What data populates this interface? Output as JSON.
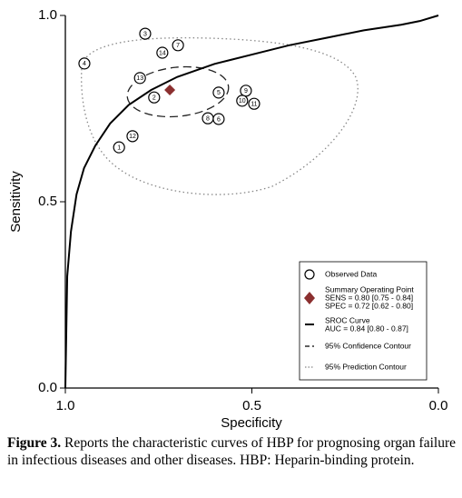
{
  "chart_data": {
    "type": "scatter",
    "xlabel": "Specificity",
    "ylabel": "Sensitivity",
    "xlim": [
      1.0,
      0.0
    ],
    "ylim": [
      0.0,
      1.0
    ],
    "xticks": [
      {
        "value": 1.0,
        "label": "1.0"
      },
      {
        "value": 0.5,
        "label": "0.5"
      },
      {
        "value": 0.0,
        "label": "0.0"
      }
    ],
    "yticks": [
      {
        "value": 0.0,
        "label": "0.0"
      },
      {
        "value": 0.5,
        "label": "0.5"
      },
      {
        "value": 1.0,
        "label": "1.0"
      }
    ],
    "points": {
      "name": "Observed Data",
      "labels": [
        "1",
        "12",
        "3",
        "4",
        "14",
        "7",
        "13",
        "2",
        "5",
        "8",
        "6",
        "9",
        "10",
        "11"
      ],
      "x": [
        0.856,
        0.82,
        0.786,
        0.949,
        0.74,
        0.698,
        0.8,
        0.762,
        0.589,
        0.618,
        0.589,
        0.516,
        0.526,
        0.494
      ],
      "y": [
        0.646,
        0.676,
        0.951,
        0.871,
        0.9,
        0.92,
        0.832,
        0.78,
        0.793,
        0.724,
        0.722,
        0.798,
        0.771,
        0.763
      ]
    },
    "summary": {
      "name": "Summary Operating Point",
      "sens_text": "SENS = 0.80 [0.75 - 0.84]",
      "spec_text": "SPEC = 0.72 [0.62 - 0.80]",
      "x": 0.72,
      "y": 0.8,
      "color": "#8b2f2f"
    },
    "curve": {
      "name": "SROC Curve",
      "auc_text": "AUC = 0.84 [0.80 - 0.87]",
      "x": [
        1.0,
        0.995,
        0.985,
        0.97,
        0.95,
        0.92,
        0.88,
        0.83,
        0.77,
        0.7,
        0.6,
        0.5,
        0.4,
        0.3,
        0.2,
        0.1,
        0.05,
        0.0
      ],
      "y": [
        0.0,
        0.3,
        0.42,
        0.52,
        0.59,
        0.65,
        0.71,
        0.76,
        0.8,
        0.835,
        0.87,
        0.895,
        0.92,
        0.94,
        0.96,
        0.975,
        0.985,
        1.0
      ]
    },
    "confidence_name": "95% Confidence Contour",
    "prediction_name": "95% Prediction Contour"
  },
  "caption": {
    "label": "Figure 3.",
    "text": " Reports the characteristic curves of HBP for prognosing organ failure in infectious diseases and other diseases. HBP: Heparin-binding protein."
  }
}
